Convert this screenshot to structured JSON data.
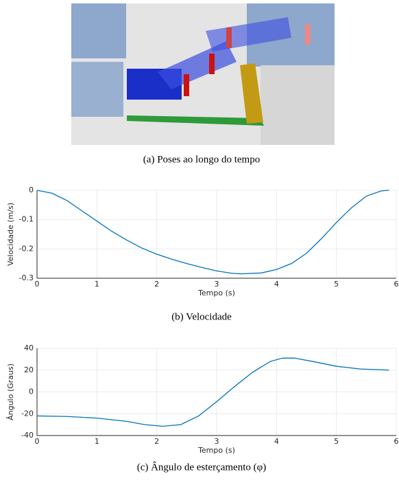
{
  "figure": {
    "caption": "(a) Poses ao longo do tempo"
  },
  "chart_data": [
    {
      "type": "line",
      "caption": "(b) Velocidade",
      "xlabel": "Tempo (s)",
      "ylabel": "Velocidade (m/s)",
      "x": [
        0,
        0.25,
        0.5,
        0.75,
        1,
        1.25,
        1.5,
        1.75,
        2,
        2.25,
        2.5,
        2.75,
        3,
        3.25,
        3.4,
        3.75,
        4,
        4.25,
        4.5,
        4.75,
        5,
        5.25,
        5.5,
        5.75,
        5.88
      ],
      "series": [
        {
          "color": "#0072bd",
          "values": [
            0,
            -0.01,
            -0.035,
            -0.07,
            -0.105,
            -0.14,
            -0.17,
            -0.197,
            -0.218,
            -0.235,
            -0.25,
            -0.263,
            -0.275,
            -0.283,
            -0.285,
            -0.282,
            -0.27,
            -0.25,
            -0.215,
            -0.165,
            -0.11,
            -0.06,
            -0.02,
            -0.002,
            0
          ]
        }
      ],
      "xlim": [
        0,
        6
      ],
      "xticks": [
        0,
        1,
        2,
        3,
        4,
        5,
        6
      ],
      "ylim": [
        -0.3,
        0
      ],
      "yticks": [
        -0.3,
        -0.2,
        -0.1,
        0
      ],
      "grid": true
    },
    {
      "type": "line",
      "caption": "(c) Ângulo de esterçamento (φ)",
      "xlabel": "Tempo (s)",
      "ylabel": "Ângulo (Graus)",
      "x": [
        0,
        0.5,
        1,
        1.5,
        1.8,
        2.1,
        2.4,
        2.7,
        3,
        3.3,
        3.6,
        3.9,
        4.1,
        4.3,
        4.6,
        5,
        5.4,
        5.88
      ],
      "series": [
        {
          "color": "#0072bd",
          "values": [
            -22,
            -22.5,
            -24,
            -27,
            -30,
            -31.5,
            -30,
            -22,
            -9,
            5,
            18,
            28,
            31,
            31,
            28,
            23.5,
            21,
            20
          ]
        }
      ],
      "xlim": [
        0,
        6
      ],
      "xticks": [
        0,
        1,
        2,
        3,
        4,
        5,
        6
      ],
      "ylim": [
        -40,
        40
      ],
      "yticks": [
        -40,
        -20,
        0,
        20,
        40
      ],
      "grid": true
    }
  ]
}
